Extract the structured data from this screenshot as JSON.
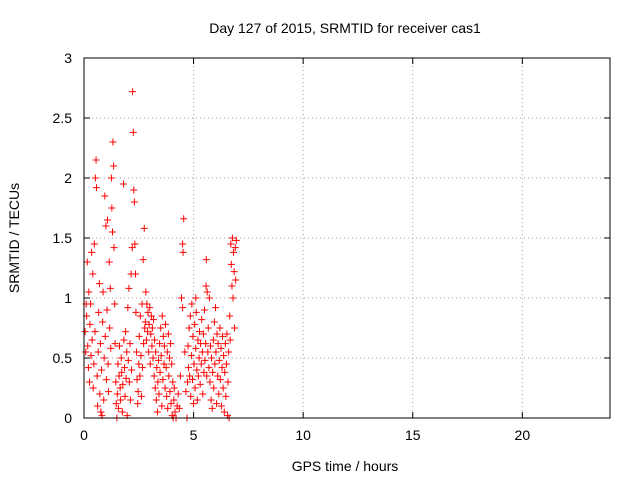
{
  "chart_data": {
    "type": "scatter",
    "title": "Day 127 of 2015, SRMTID for receiver cas1",
    "xlabel": "GPS time / hours",
    "ylabel": "SRMTID / TECUs",
    "xlim": [
      0,
      24
    ],
    "ylim": [
      0,
      3
    ],
    "xticks": [
      0,
      5,
      10,
      15,
      20
    ],
    "yticks": [
      0,
      0.5,
      1,
      1.5,
      2,
      2.5,
      3
    ],
    "grid": true,
    "marker": "plus",
    "color": "#ff0000",
    "series": [
      {
        "name": "SRMTID",
        "points": [
          [
            0.05,
            0.72
          ],
          [
            0.08,
            0.55
          ],
          [
            0.1,
            0.95
          ],
          [
            0.12,
            0.85
          ],
          [
            0.15,
            1.3
          ],
          [
            0.17,
            0.6
          ],
          [
            0.2,
            0.42
          ],
          [
            0.22,
            1.05
          ],
          [
            0.25,
            0.3
          ],
          [
            0.27,
            0.78
          ],
          [
            0.3,
            0.95
          ],
          [
            0.32,
            0.52
          ],
          [
            0.35,
            1.38
          ],
          [
            0.37,
            0.65
          ],
          [
            0.4,
            1.2
          ],
          [
            0.42,
            0.25
          ],
          [
            0.45,
            0.45
          ],
          [
            0.47,
            1.45
          ],
          [
            0.5,
            0.72
          ],
          [
            0.52,
            2.0
          ],
          [
            0.55,
            2.15
          ],
          [
            0.57,
            1.92
          ],
          [
            0.6,
            0.35
          ],
          [
            0.62,
            0.1
          ],
          [
            0.65,
            0.55
          ],
          [
            0.67,
            0.88
          ],
          [
            0.7,
            1.12
          ],
          [
            0.72,
            0.2
          ],
          [
            0.75,
            0.62
          ],
          [
            0.77,
            0.05
          ],
          [
            0.8,
            0.4
          ],
          [
            0.82,
            0.02
          ],
          [
            0.85,
            0.8
          ],
          [
            0.87,
            1.05
          ],
          [
            0.9,
            0.15
          ],
          [
            0.92,
            0.5
          ],
          [
            0.95,
            1.85
          ],
          [
            0.97,
            0.68
          ],
          [
            1.0,
            1.6
          ],
          [
            1.02,
            0.32
          ],
          [
            1.05,
            0.9
          ],
          [
            1.07,
            1.65
          ],
          [
            1.1,
            0.45
          ],
          [
            1.12,
            0.22
          ],
          [
            1.15,
            1.3
          ],
          [
            1.17,
            0.75
          ],
          [
            1.2,
            1.08
          ],
          [
            1.22,
            0.58
          ],
          [
            1.25,
            2.0
          ],
          [
            1.27,
            1.75
          ],
          [
            1.3,
            1.55
          ],
          [
            1.32,
            2.3
          ],
          [
            1.35,
            2.1
          ],
          [
            1.37,
            1.42
          ],
          [
            1.4,
            0.95
          ],
          [
            1.42,
            0.62
          ],
          [
            1.45,
            0.3
          ],
          [
            1.47,
            0.12
          ],
          [
            1.5,
            0.0
          ],
          [
            1.52,
            0.2
          ],
          [
            1.55,
            0.45
          ],
          [
            1.57,
            0.08
          ],
          [
            1.6,
            0.35
          ],
          [
            1.62,
            0.6
          ],
          [
            1.65,
            0.25
          ],
          [
            1.67,
            0.15
          ],
          [
            1.7,
            0.5
          ],
          [
            1.72,
            0.38
          ],
          [
            1.75,
            0.05
          ],
          [
            1.77,
            0.28
          ],
          [
            1.8,
            1.95
          ],
          [
            1.82,
            0.65
          ],
          [
            1.85,
            0.42
          ],
          [
            1.87,
            0.18
          ],
          [
            1.9,
            0.72
          ],
          [
            1.92,
            0.33
          ],
          [
            1.95,
            0.55
          ],
          [
            1.97,
            0.02
          ],
          [
            2.0,
            0.92
          ],
          [
            2.02,
            0.48
          ],
          [
            2.05,
            1.08
          ],
          [
            2.07,
            0.3
          ],
          [
            2.1,
            0.62
          ],
          [
            2.12,
            0.15
          ],
          [
            2.15,
            1.2
          ],
          [
            2.17,
            0.4
          ],
          [
            2.2,
            1.42
          ],
          [
            2.22,
            2.72
          ],
          [
            2.25,
            2.38
          ],
          [
            2.27,
            1.9
          ],
          [
            2.3,
            1.8
          ],
          [
            2.32,
            1.45
          ],
          [
            2.35,
            1.2
          ],
          [
            2.37,
            0.88
          ],
          [
            2.4,
            0.55
          ],
          [
            2.42,
            0.32
          ],
          [
            2.45,
            0.12
          ],
          [
            2.47,
            0.22
          ],
          [
            2.5,
            0.45
          ],
          [
            2.52,
            0.68
          ],
          [
            2.55,
            0.35
          ],
          [
            2.57,
            0.85
          ],
          [
            2.6,
            0.52
          ],
          [
            2.62,
            0.18
          ],
          [
            2.65,
            0.95
          ],
          [
            2.67,
            0.42
          ],
          [
            2.7,
            1.32
          ],
          [
            2.72,
            0.62
          ],
          [
            2.75,
            1.58
          ],
          [
            2.77,
            0.75
          ],
          [
            2.8,
            0.8
          ],
          [
            2.82,
            1.05
          ],
          [
            2.85,
            0.65
          ],
          [
            2.87,
            0.95
          ],
          [
            2.9,
            0.72
          ],
          [
            2.92,
            0.88
          ],
          [
            2.95,
            0.55
          ],
          [
            2.97,
            0.78
          ],
          [
            3.0,
            0.92
          ],
          [
            3.02,
            0.45
          ],
          [
            3.05,
            0.7
          ],
          [
            3.07,
            0.85
          ],
          [
            3.1,
            0.6
          ],
          [
            3.12,
            0.75
          ],
          [
            3.15,
            0.5
          ],
          [
            3.17,
            0.82
          ],
          [
            3.2,
            0.35
          ],
          [
            3.22,
            0.65
          ],
          [
            3.25,
            0.25
          ],
          [
            3.27,
            0.55
          ],
          [
            3.3,
            0.15
          ],
          [
            3.32,
            0.42
          ],
          [
            3.35,
            0.05
          ],
          [
            3.37,
            0.3
          ],
          [
            3.4,
            0.48
          ],
          [
            3.42,
            0.2
          ],
          [
            3.45,
            0.62
          ],
          [
            3.47,
            0.38
          ],
          [
            3.5,
            0.75
          ],
          [
            3.52,
            0.52
          ],
          [
            3.55,
            0.1
          ],
          [
            3.57,
            0.85
          ],
          [
            3.6,
            0.32
          ],
          [
            3.62,
            0.68
          ],
          [
            3.65,
            0.45
          ],
          [
            3.67,
            0.6
          ],
          [
            3.7,
            0.25
          ],
          [
            3.72,
            0.78
          ],
          [
            3.75,
            0.42
          ],
          [
            3.77,
            0.18
          ],
          [
            3.8,
            0.55
          ],
          [
            3.82,
            0.08
          ],
          [
            3.85,
            0.7
          ],
          [
            3.87,
            0.35
          ],
          [
            3.9,
            0.5
          ],
          [
            3.92,
            0.22
          ],
          [
            3.95,
            0.62
          ],
          [
            3.97,
            0.12
          ],
          [
            4.0,
            0.45
          ],
          [
            4.02,
            0.02
          ],
          [
            4.05,
            0.3
          ],
          [
            4.07,
            0.0
          ],
          [
            4.1,
            0.15
          ],
          [
            4.12,
            0.25
          ],
          [
            4.15,
            0.05
          ],
          [
            4.2,
            0.0
          ],
          [
            4.25,
            0.1
          ],
          [
            4.3,
            0.2
          ],
          [
            4.35,
            0.08
          ],
          [
            4.4,
            0.35
          ],
          [
            4.45,
            1.0
          ],
          [
            4.5,
            1.45
          ],
          [
            4.52,
            1.38
          ],
          [
            4.55,
            1.66
          ],
          [
            4.6,
            0.55
          ],
          [
            4.65,
            0.22
          ],
          [
            4.7,
            0.0
          ],
          [
            4.72,
            0.3
          ],
          [
            4.75,
            0.6
          ],
          [
            4.77,
            0.42
          ],
          [
            4.8,
            0.75
          ],
          [
            4.82,
            0.35
          ],
          [
            4.85,
            0.85
          ],
          [
            4.87,
            0.18
          ],
          [
            4.9,
            0.52
          ],
          [
            4.92,
            0.95
          ],
          [
            4.95,
            0.32
          ],
          [
            4.97,
            0.68
          ],
          [
            5.0,
            0.12
          ],
          [
            5.02,
            0.45
          ],
          [
            5.05,
            0.78
          ],
          [
            5.07,
            0.25
          ],
          [
            5.1,
            0.58
          ],
          [
            5.12,
            0.88
          ],
          [
            5.15,
            0.4
          ],
          [
            5.17,
            0.15
          ],
          [
            5.2,
            0.65
          ],
          [
            5.22,
            0.35
          ],
          [
            5.25,
            0.5
          ],
          [
            5.27,
            0.72
          ],
          [
            5.3,
            0.28
          ],
          [
            5.32,
            0.62
          ],
          [
            5.35,
            0.45
          ],
          [
            5.37,
            0.82
          ],
          [
            5.4,
            0.55
          ],
          [
            5.42,
            0.2
          ],
          [
            5.45,
            0.7
          ],
          [
            5.47,
            0.38
          ],
          [
            5.5,
            0.9
          ],
          [
            5.52,
            0.48
          ],
          [
            5.55,
            0.62
          ],
          [
            5.57,
            1.1
          ],
          [
            5.6,
            0.35
          ],
          [
            5.62,
            1.05
          ],
          [
            5.65,
            0.55
          ],
          [
            5.67,
            0.75
          ],
          [
            5.7,
            0.42
          ],
          [
            5.72,
            1.0
          ],
          [
            5.75,
            0.3
          ],
          [
            5.77,
            0.6
          ],
          [
            5.8,
            0.15
          ],
          [
            5.82,
            0.5
          ],
          [
            5.85,
            0.08
          ],
          [
            5.87,
            0.38
          ],
          [
            5.9,
            0.65
          ],
          [
            5.92,
            0.25
          ],
          [
            5.95,
            0.8
          ],
          [
            5.97,
            0.45
          ],
          [
            6.0,
            0.92
          ],
          [
            6.02,
            0.55
          ],
          [
            6.05,
            0.12
          ],
          [
            6.07,
            0.7
          ],
          [
            6.1,
            0.35
          ],
          [
            6.12,
            0.62
          ],
          [
            6.15,
            0.2
          ],
          [
            6.17,
            0.48
          ],
          [
            6.2,
            0.75
          ],
          [
            6.22,
            0.32
          ],
          [
            6.25,
            0.58
          ],
          [
            6.27,
            0.1
          ],
          [
            6.3,
            0.42
          ],
          [
            6.32,
            0.68
          ],
          [
            6.35,
            0.25
          ],
          [
            6.37,
            0.52
          ],
          [
            6.4,
            0.05
          ],
          [
            6.42,
            0.38
          ],
          [
            6.45,
            0.62
          ],
          [
            6.47,
            0.18
          ],
          [
            6.5,
            0.45
          ],
          [
            6.52,
            0.7
          ],
          [
            6.55,
            0.02
          ],
          [
            6.57,
            0.3
          ],
          [
            6.6,
            0.55
          ],
          [
            6.62,
            0.0
          ],
          [
            6.65,
            0.85
          ],
          [
            6.67,
            0.65
          ],
          [
            6.7,
            1.45
          ],
          [
            6.72,
            1.28
          ],
          [
            6.75,
            1.1
          ],
          [
            6.77,
            1.5
          ],
          [
            6.8,
            1.0
          ],
          [
            6.82,
            1.38
          ],
          [
            6.85,
            1.22
          ],
          [
            6.87,
            0.75
          ],
          [
            6.9,
            1.42
          ],
          [
            6.92,
            1.15
          ],
          [
            6.95,
            1.48
          ],
          [
            5.58,
            1.32
          ],
          [
            5.1,
            1.0
          ],
          [
            4.5,
            0.92
          ]
        ]
      }
    ]
  }
}
